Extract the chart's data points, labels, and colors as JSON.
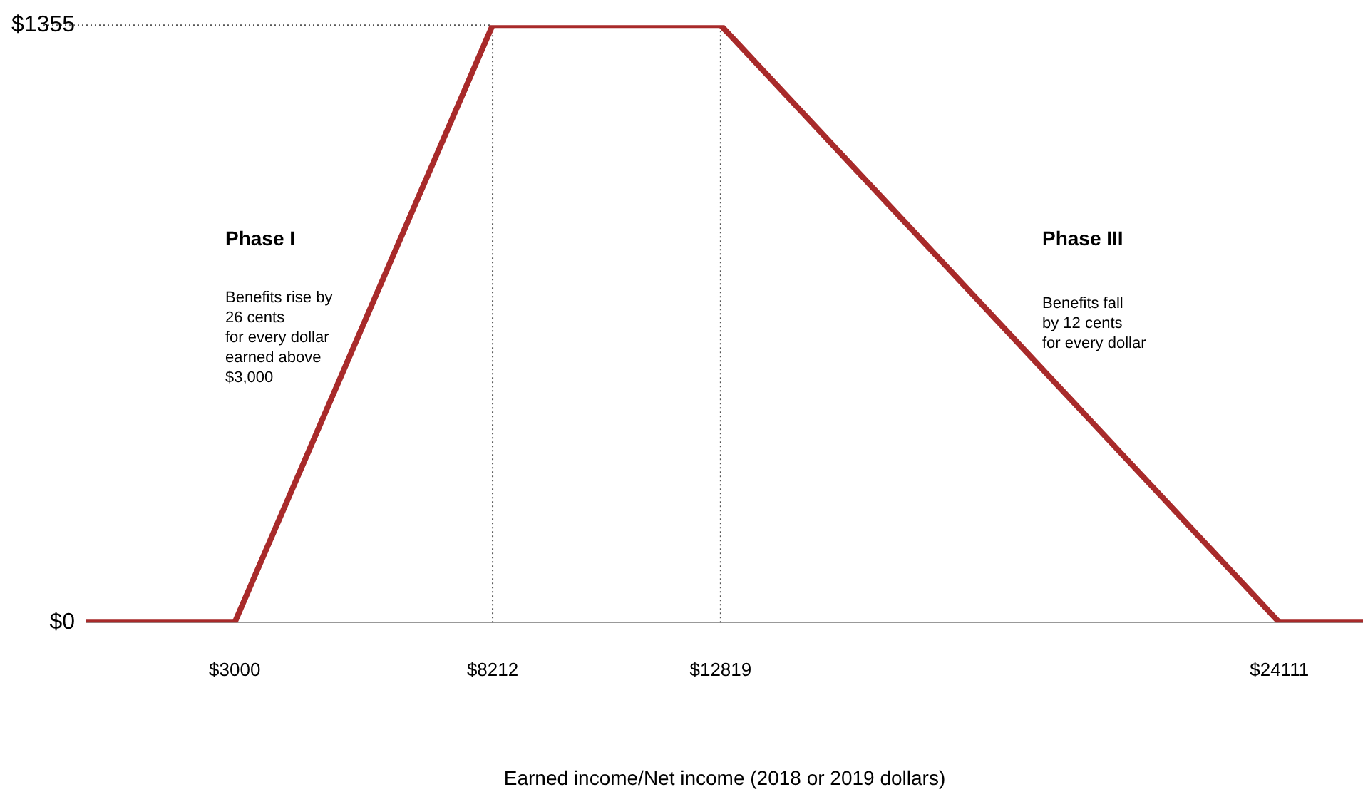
{
  "chart_data": {
    "type": "line",
    "xlabel": "Earned income/Net income (2018 or 2019 dollars)",
    "x": [
      0,
      3000,
      8212,
      12819,
      24111,
      25800
    ],
    "series": [
      {
        "color": "#a82a2a",
        "values": [
          0,
          0,
          1355,
          1355,
          0,
          0
        ]
      }
    ],
    "xlim": [
      0,
      25800
    ],
    "xticks": [
      {
        "value": 3000,
        "label": "$3000"
      },
      {
        "value": 8212,
        "label": "$8212"
      },
      {
        "value": 12819,
        "label": "$12819"
      },
      {
        "value": 24111,
        "label": "$24111"
      }
    ],
    "ylim": [
      0,
      1355
    ],
    "yticks": [
      {
        "value": 0,
        "label": "$0"
      },
      {
        "value": 1355,
        "label": "$1355"
      }
    ],
    "ref_lines": [
      {
        "axis": "x",
        "value": 8212,
        "color": "#555555",
        "line_style": "dotted"
      },
      {
        "axis": "x",
        "value": 12819,
        "color": "#555555",
        "line_style": "dotted"
      },
      {
        "axis": "y",
        "value": 1355,
        "color": "#555555",
        "line_style": "dotted"
      }
    ],
    "annotations": [
      "Phase I",
      "Benefits rise by\n26 cents\nfor every dollar\nearned above\n$3,000",
      "Phase III",
      "Benefits fall\nby 12 cents\nfor every dollar"
    ],
    "grid": false,
    "legend": false,
    "marker": "none",
    "line_style": "solid"
  }
}
